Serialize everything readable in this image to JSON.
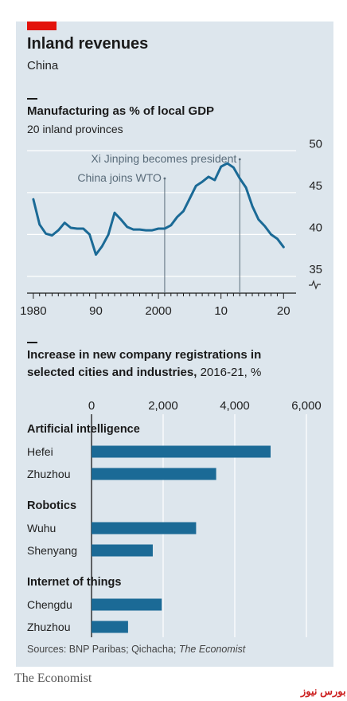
{
  "header": {
    "title": "Inland revenues",
    "subtitle": "China"
  },
  "chart1": {
    "title": "Manufacturing as % of local GDP",
    "subtitle": "20 inland provinces"
  },
  "chart2": {
    "title_line1": "Increase in new company registrations in",
    "title_line2": "selected cities and industries,",
    "title_unit": " 2016-21, %"
  },
  "groups": {
    "g1": "Artificial intelligence",
    "g2": "Robotics",
    "g3": "Internet of things"
  },
  "footer": {
    "sources": "Sources: BNP Paribas; Qichacha; ",
    "sources_italic": "The Economist",
    "brand": "The Economist",
    "watermark": "بورس نیوز"
  },
  "colors": {
    "panel": "#dde6ed",
    "accent": "#e3120b",
    "series": "#1b6a96",
    "grid": "#ffffff",
    "annotation": "#5a6c7a"
  },
  "chart_data": [
    {
      "type": "line",
      "title": "Manufacturing as % of local GDP",
      "subtitle": "20 inland provinces",
      "x_ticks": [
        "1980",
        "90",
        "2000",
        "10",
        "20"
      ],
      "y_ticks": [
        35,
        40,
        45,
        50
      ],
      "xlim": [
        1979,
        2022
      ],
      "ylim": [
        33,
        50.5
      ],
      "y_axis_side": "right",
      "y_axis_break": true,
      "grid": true,
      "series": [
        {
          "x": [
            1980,
            1981,
            1982,
            1983,
            1984,
            1985,
            1986,
            1987,
            1988,
            1989,
            1990,
            1991,
            1992,
            1993,
            1994,
            1995,
            1996,
            1997,
            1998,
            1999,
            2000,
            2001,
            2002,
            2003,
            2004,
            2005,
            2006,
            2007,
            2008,
            2009,
            2010,
            2011,
            2012,
            2013,
            2014,
            2015,
            2016,
            2017,
            2018,
            2019,
            2020
          ],
          "y": [
            44.2,
            41.2,
            40.1,
            39.9,
            40.5,
            41.4,
            40.8,
            40.7,
            40.7,
            40.0,
            37.6,
            38.6,
            40.0,
            42.6,
            41.8,
            40.9,
            40.6,
            40.6,
            40.5,
            40.5,
            40.7,
            40.7,
            41.1,
            42.1,
            42.8,
            44.3,
            45.8,
            46.3,
            46.9,
            46.5,
            48.1,
            48.5,
            48.0,
            46.7,
            45.6,
            43.4,
            41.8,
            41.0,
            40.0,
            39.5,
            38.5
          ]
        }
      ],
      "annotations": [
        {
          "label": "China joins WTO",
          "x": 2001
        },
        {
          "label": "Xi Jinping becomes president",
          "x": 2013
        }
      ]
    },
    {
      "type": "bar",
      "orientation": "horizontal",
      "title": "Increase in new company registrations in selected cities and industries, 2016-21, %",
      "x_ticks": [
        "0",
        "2,000",
        "4,000",
        "6,000"
      ],
      "xlim": [
        0,
        6200
      ],
      "grid": true,
      "groups": [
        {
          "name": "Artificial intelligence",
          "categories": [
            "Hefei",
            "Zhuzhou"
          ],
          "values": [
            5000,
            3480
          ]
        },
        {
          "name": "Robotics",
          "categories": [
            "Wuhu",
            "Shenyang"
          ],
          "values": [
            2920,
            1710
          ]
        },
        {
          "name": "Internet of things",
          "categories": [
            "Chengdu",
            "Zhuzhou"
          ],
          "values": [
            1960,
            1020
          ]
        }
      ]
    }
  ]
}
